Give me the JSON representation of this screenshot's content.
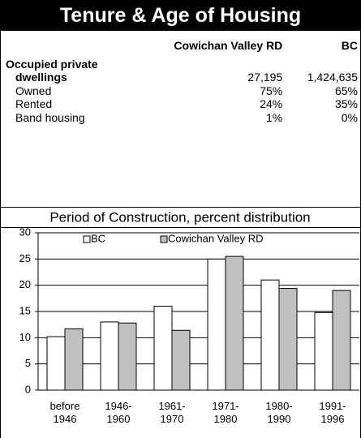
{
  "title": "Tenure & Age of Housing",
  "table": {
    "columns": [
      "Cowichan Valley RD",
      "BC"
    ],
    "rows": [
      {
        "label": "Occupied private dwellings",
        "values": [
          "27,195",
          "1,424,635"
        ]
      },
      {
        "label": "Owned",
        "values": [
          "75%",
          "65%"
        ]
      },
      {
        "label": "Rented",
        "values": [
          "24%",
          "35%"
        ]
      },
      {
        "label": "Band housing",
        "values": [
          "1%",
          "0%"
        ]
      }
    ]
  },
  "chart_data": {
    "type": "bar",
    "title": "Period of Construction, percent distribution",
    "categories": [
      "before 1946",
      "1946-1960",
      "1961-1970",
      "1971-1980",
      "1980-1990",
      "1991-1996"
    ],
    "series": [
      {
        "name": "BC",
        "color": "#ffffff",
        "values": [
          10.2,
          13,
          16,
          25,
          21,
          14.8
        ]
      },
      {
        "name": "Cowichan Valley RD",
        "color": "#c0c0c0",
        "values": [
          11.7,
          12.8,
          11.4,
          25.5,
          19.4,
          19
        ]
      }
    ],
    "ylim": [
      0,
      30
    ],
    "yticks": [
      0,
      5,
      10,
      15,
      20,
      25,
      30
    ],
    "grid": true,
    "legend": "top"
  }
}
